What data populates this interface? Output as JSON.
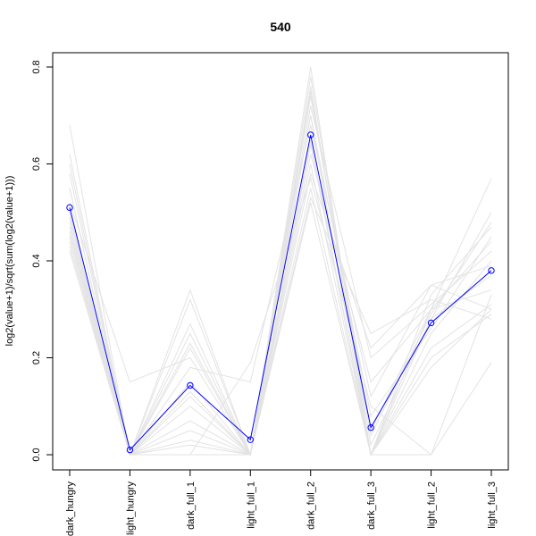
{
  "chart_data": {
    "type": "line",
    "title": "540",
    "xlabel": "",
    "ylabel": "log2(value+1)/sqrt(sum(log2(value+1)))",
    "ylim": [
      -0.03,
      0.83
    ],
    "yticks": [
      0.0,
      0.2,
      0.4,
      0.6,
      0.8
    ],
    "ytick_labels": [
      "0.0",
      "0.2",
      "0.4",
      "0.6",
      "0.8"
    ],
    "categories": [
      "dark_hungry",
      "light_hungry",
      "dark_full_1",
      "light_full_1",
      "dark_full_2",
      "dark_full_3",
      "light_full_2",
      "light_full_3"
    ],
    "highlight_series": {
      "color": "#0000ff",
      "values": [
        0.51,
        0.01,
        0.143,
        0.031,
        0.66,
        0.056,
        0.272,
        0.38
      ]
    },
    "background_color": "#e3e3e3",
    "background_series": [
      {
        "values": [
          0.68,
          0.0,
          0.34,
          0.0,
          0.8,
          0.0,
          0.3,
          0.57
        ]
      },
      {
        "values": [
          0.62,
          0.0,
          0.32,
          0.0,
          0.78,
          0.02,
          0.28,
          0.5
        ]
      },
      {
        "values": [
          0.58,
          0.0,
          0.27,
          0.0,
          0.76,
          0.0,
          0.33,
          0.47
        ]
      },
      {
        "values": [
          0.55,
          0.0,
          0.25,
          0.0,
          0.74,
          0.05,
          0.3,
          0.44
        ]
      },
      {
        "values": [
          0.52,
          0.15,
          0.2,
          0.0,
          0.72,
          0.2,
          0.31,
          0.42
        ]
      },
      {
        "values": [
          0.5,
          0.0,
          0.22,
          0.0,
          0.7,
          0.0,
          0.25,
          0.4
        ]
      },
      {
        "values": [
          0.49,
          0.0,
          0.18,
          0.15,
          0.68,
          0.12,
          0.35,
          0.39
        ]
      },
      {
        "values": [
          0.48,
          0.0,
          0.15,
          0.0,
          0.65,
          0.0,
          0.28,
          0.37
        ]
      },
      {
        "values": [
          0.47,
          0.0,
          0.13,
          0.0,
          0.62,
          0.15,
          0.3,
          0.34
        ]
      },
      {
        "values": [
          0.46,
          0.0,
          0.1,
          0.0,
          0.6,
          0.0,
          0.22,
          0.31
        ]
      },
      {
        "values": [
          0.45,
          0.0,
          0.07,
          0.0,
          0.58,
          0.22,
          0.35,
          0.3
        ]
      },
      {
        "values": [
          0.44,
          0.0,
          0.05,
          0.0,
          0.55,
          0.0,
          0.2,
          0.29
        ]
      },
      {
        "values": [
          0.43,
          0.0,
          0.03,
          0.0,
          0.53,
          0.25,
          0.32,
          0.28
        ]
      },
      {
        "values": [
          0.42,
          0.0,
          0.02,
          0.0,
          0.52,
          0.0,
          0.18,
          0.3
        ]
      },
      {
        "values": [
          0.46,
          0.0,
          0.0,
          0.19,
          0.57,
          0.1,
          0.0,
          0.19
        ]
      },
      {
        "values": [
          0.5,
          0.0,
          0.0,
          0.0,
          0.64,
          0.0,
          0.0,
          0.33
        ]
      },
      {
        "values": [
          0.55,
          0.0,
          0.12,
          0.0,
          0.7,
          0.08,
          0.26,
          0.45
        ]
      },
      {
        "values": [
          0.6,
          0.0,
          0.23,
          0.0,
          0.75,
          0.04,
          0.29,
          0.48
        ]
      }
    ]
  }
}
